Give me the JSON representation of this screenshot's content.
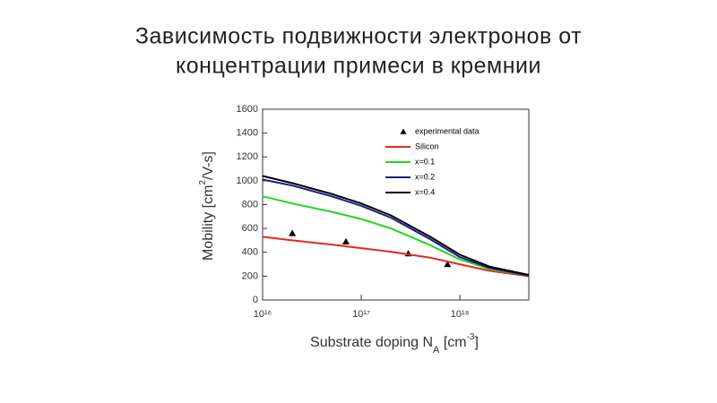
{
  "chart_data": {
    "type": "line",
    "title_lines": [
      "Зависимость подвижности электронов от",
      "концентрации примеси в кремнии"
    ],
    "xlabel_parts": [
      "Substrate doping N",
      "A",
      "  [cm",
      "-3",
      "]"
    ],
    "ylabel_parts": [
      "Mobility  [cm",
      "2",
      "/V-s]"
    ],
    "xscale": "log",
    "xlim": [
      1e+16,
      5e+18
    ],
    "xticks": [
      {
        "value": 1e+16,
        "label": "10¹⁶"
      },
      {
        "value": 1e+17,
        "label": "10¹⁷"
      },
      {
        "value": 1e+18,
        "label": "10¹⁸"
      }
    ],
    "ylim": [
      0,
      1600
    ],
    "yticks": [
      0,
      200,
      400,
      600,
      800,
      1000,
      1200,
      1400,
      1600
    ],
    "legend": "top-right",
    "series": [
      {
        "name": "experimental data",
        "color": "#000000",
        "style": "marker",
        "x": [
          2e+16,
          7e+16,
          3e+17,
          7.5e+17
        ],
        "values": [
          560,
          490,
          390,
          300
        ]
      },
      {
        "name": "Silicon",
        "color": "#e8281e",
        "style": "line",
        "x": [
          1e+16,
          2e+16,
          5e+16,
          1e+17,
          2e+17,
          5e+17,
          1e+18,
          2e+18,
          5e+18
        ],
        "values": [
          530,
          500,
          465,
          435,
          405,
          355,
          300,
          245,
          200
        ]
      },
      {
        "name": "x=0.1",
        "color": "#22d822",
        "style": "line",
        "x": [
          1e+16,
          2e+16,
          5e+16,
          1e+17,
          2e+17,
          5e+17,
          1e+18,
          2e+18,
          5e+18
        ],
        "values": [
          870,
          810,
          740,
          680,
          600,
          460,
          340,
          260,
          205
        ]
      },
      {
        "name": "x=0.2",
        "color": "#1a1a8c",
        "style": "line",
        "x": [
          1e+16,
          2e+16,
          5e+16,
          1e+17,
          2e+17,
          5e+17,
          1e+18,
          2e+18,
          5e+18
        ],
        "values": [
          1010,
          960,
          870,
          790,
          690,
          510,
          360,
          270,
          205
        ]
      },
      {
        "name": "x=0.4",
        "color": "#000000",
        "style": "line",
        "x": [
          1e+16,
          2e+16,
          5e+16,
          1e+17,
          2e+17,
          5e+17,
          1e+18,
          2e+18,
          5e+18
        ],
        "values": [
          1040,
          980,
          890,
          810,
          710,
          530,
          380,
          280,
          210
        ]
      }
    ]
  }
}
